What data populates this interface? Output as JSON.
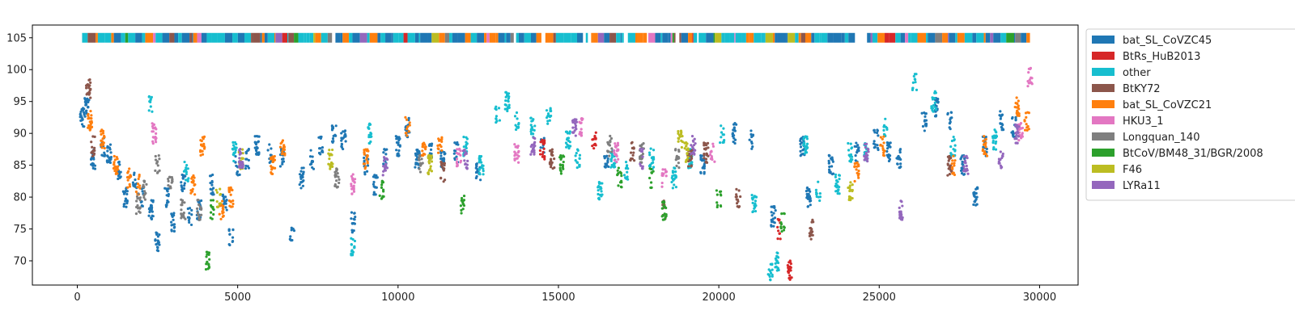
{
  "chart_data": {
    "type": "scatter",
    "title": "",
    "xlabel": "",
    "ylabel": "",
    "xlim": [
      -1400,
      31200
    ],
    "ylim": [
      66.2,
      107.0
    ],
    "x_ticks": [
      0,
      5000,
      10000,
      15000,
      20000,
      25000,
      30000
    ],
    "x_tick_labels": [
      "0",
      "5000",
      "10000",
      "15000",
      "20000",
      "25000",
      "30000"
    ],
    "y_ticks": [
      70,
      75,
      80,
      85,
      90,
      95,
      100,
      105
    ],
    "y_tick_labels": [
      "70",
      "75",
      "80",
      "85",
      "90",
      "95",
      "100",
      "105"
    ],
    "grid": false,
    "legend_position": "outside-right-top",
    "genome_range": [
      150,
      29700
    ],
    "strip_y": 105,
    "series": [
      {
        "name": "bat_SL_CoVZC45",
        "color": "#1f77b4",
        "points": [
          [
            150,
            92.5
          ],
          [
            300,
            94
          ],
          [
            500,
            86
          ],
          [
            800,
            88
          ],
          [
            1000,
            87
          ],
          [
            1300,
            84
          ],
          [
            1500,
            80
          ],
          [
            1800,
            83
          ],
          [
            2000,
            80
          ],
          [
            2300,
            78
          ],
          [
            2500,
            73
          ],
          [
            2800,
            80
          ],
          [
            3000,
            76
          ],
          [
            3300,
            82
          ],
          [
            3500,
            77
          ],
          [
            3800,
            78
          ],
          [
            4200,
            82
          ],
          [
            4600,
            79
          ],
          [
            4800,
            74
          ],
          [
            5000,
            85
          ],
          [
            5300,
            86
          ],
          [
            5600,
            88
          ],
          [
            6000,
            87
          ],
          [
            6400,
            86
          ],
          [
            6700,
            74
          ],
          [
            7000,
            83
          ],
          [
            7300,
            86
          ],
          [
            7600,
            88
          ],
          [
            8000,
            90
          ],
          [
            8300,
            89
          ],
          [
            8600,
            76
          ],
          [
            9000,
            85
          ],
          [
            9300,
            82
          ],
          [
            9600,
            86
          ],
          [
            10000,
            88
          ],
          [
            10300,
            91
          ],
          [
            10600,
            86
          ],
          [
            11000,
            87
          ],
          [
            11400,
            86
          ],
          [
            11800,
            87
          ],
          [
            12500,
            84
          ],
          [
            14500,
            88
          ],
          [
            16500,
            86
          ],
          [
            19500,
            85
          ],
          [
            20500,
            90
          ],
          [
            21000,
            89
          ],
          [
            21700,
            77
          ],
          [
            22600,
            88
          ],
          [
            22800,
            80
          ],
          [
            23500,
            85
          ],
          [
            24300,
            87
          ],
          [
            24900,
            89
          ],
          [
            25300,
            87
          ],
          [
            25600,
            86
          ],
          [
            26400,
            92
          ],
          [
            26800,
            94
          ],
          [
            27200,
            92
          ],
          [
            27600,
            85
          ],
          [
            28000,
            80
          ],
          [
            28300,
            88
          ],
          [
            28800,
            92
          ],
          [
            29200,
            91
          ]
        ]
      },
      {
        "name": "BtRs_HuB2013",
        "color": "#d62728",
        "points": [
          [
            14500,
            87.5
          ],
          [
            16100,
            89
          ],
          [
            22200,
            68.5
          ],
          [
            21900,
            75
          ]
        ]
      },
      {
        "name": "other",
        "color": "#17becf",
        "points": [
          [
            2300,
            95
          ],
          [
            3400,
            84
          ],
          [
            4900,
            87
          ],
          [
            8600,
            72
          ],
          [
            9100,
            90
          ],
          [
            12100,
            88
          ],
          [
            12600,
            85
          ],
          [
            13100,
            93
          ],
          [
            13400,
            95
          ],
          [
            13700,
            92
          ],
          [
            14200,
            91
          ],
          [
            14700,
            93
          ],
          [
            15300,
            89
          ],
          [
            15600,
            86
          ],
          [
            16300,
            81
          ],
          [
            16700,
            86
          ],
          [
            17100,
            84
          ],
          [
            17900,
            86
          ],
          [
            18600,
            83
          ],
          [
            19100,
            86
          ],
          [
            20100,
            90
          ],
          [
            21100,
            79
          ],
          [
            21600,
            68.5
          ],
          [
            21800,
            70
          ],
          [
            22700,
            88
          ],
          [
            23100,
            81
          ],
          [
            23700,
            82
          ],
          [
            24100,
            87
          ],
          [
            24600,
            87
          ],
          [
            25200,
            91
          ],
          [
            26100,
            98
          ],
          [
            26700,
            95
          ],
          [
            27300,
            88
          ],
          [
            28600,
            89
          ]
        ]
      },
      {
        "name": "BtKY72",
        "color": "#8c564b",
        "points": [
          [
            350,
            97
          ],
          [
            500,
            88
          ],
          [
            11400,
            84
          ],
          [
            14800,
            86
          ],
          [
            17300,
            87
          ],
          [
            18300,
            78
          ],
          [
            19100,
            86
          ],
          [
            19600,
            87
          ],
          [
            20600,
            80
          ],
          [
            22900,
            75
          ],
          [
            27200,
            85
          ]
        ]
      },
      {
        "name": "bat_SL_CoVZC21",
        "color": "#ff7f0e",
        "points": [
          [
            400,
            92
          ],
          [
            800,
            89
          ],
          [
            1200,
            85
          ],
          [
            1600,
            83
          ],
          [
            1900,
            82
          ],
          [
            3600,
            82
          ],
          [
            3900,
            88
          ],
          [
            4500,
            78
          ],
          [
            4800,
            80
          ],
          [
            6100,
            85
          ],
          [
            6400,
            88
          ],
          [
            9000,
            86
          ],
          [
            10300,
            91
          ],
          [
            10800,
            88
          ],
          [
            11300,
            88
          ],
          [
            24300,
            84
          ],
          [
            25100,
            88
          ],
          [
            27300,
            85
          ],
          [
            28300,
            88
          ],
          [
            29300,
            94
          ],
          [
            29600,
            92
          ]
        ]
      },
      {
        "name": "HKU3_1",
        "color": "#e377c2",
        "points": [
          [
            2400,
            90
          ],
          [
            8600,
            82
          ],
          [
            11900,
            86
          ],
          [
            13700,
            87
          ],
          [
            15700,
            91
          ],
          [
            16800,
            87
          ],
          [
            18300,
            83
          ],
          [
            19800,
            87
          ],
          [
            29700,
            99
          ],
          [
            29400,
            90
          ]
        ]
      },
      {
        "name": "Longquan_140",
        "color": "#7f7f7f",
        "points": [
          [
            1900,
            79
          ],
          [
            2100,
            81
          ],
          [
            2500,
            85
          ],
          [
            2900,
            83
          ],
          [
            3300,
            78
          ],
          [
            3800,
            78
          ],
          [
            8100,
            83
          ],
          [
            10700,
            85
          ],
          [
            16600,
            88
          ],
          [
            17600,
            87
          ],
          [
            18700,
            86
          ]
        ]
      },
      {
        "name": "BtCoV/BM48_31/BGR/2008",
        "color": "#2ca02c",
        "points": [
          [
            4050,
            70
          ],
          [
            4200,
            78
          ],
          [
            9500,
            81
          ],
          [
            12000,
            79
          ],
          [
            15100,
            85
          ],
          [
            16900,
            83
          ],
          [
            17900,
            83
          ],
          [
            18300,
            78
          ],
          [
            20000,
            80
          ],
          [
            22000,
            76
          ]
        ]
      },
      {
        "name": "F46",
        "color": "#bcbd22",
        "points": [
          [
            4400,
            80
          ],
          [
            5100,
            86
          ],
          [
            7900,
            86
          ],
          [
            11000,
            85
          ],
          [
            18800,
            89
          ],
          [
            19000,
            87
          ],
          [
            24100,
            81
          ]
        ]
      },
      {
        "name": "LYRa11",
        "color": "#9467bd",
        "points": [
          [
            5100,
            86
          ],
          [
            9600,
            85
          ],
          [
            12100,
            86
          ],
          [
            14200,
            88
          ],
          [
            15500,
            91
          ],
          [
            17600,
            86
          ],
          [
            19200,
            88
          ],
          [
            24600,
            87
          ],
          [
            25700,
            78
          ],
          [
            27700,
            85
          ],
          [
            28800,
            86
          ],
          [
            29300,
            90
          ]
        ]
      }
    ]
  }
}
